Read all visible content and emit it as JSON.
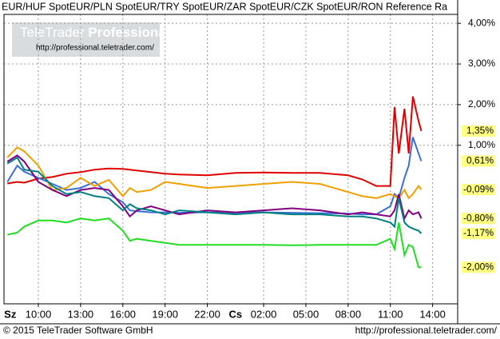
{
  "chart_data": {
    "type": "line",
    "watermark": {
      "brand": "TeleTrader",
      "product": "Professional",
      "url": "http://professional.teletrader.com/"
    },
    "footer_left": "© 2015 TeleTrader Software GmbH",
    "footer_right": "http://professional.teletrader.com/",
    "x": [
      7.8,
      8.5,
      9,
      10,
      11,
      12,
      13,
      14,
      15,
      16,
      16.5,
      17,
      18,
      19,
      20,
      22,
      24,
      26,
      28,
      30,
      32,
      33,
      34,
      35,
      35.3,
      35.6,
      36,
      36.3,
      36.6,
      37,
      37.2
    ],
    "xlim": [
      7.56,
      39.78
    ],
    "xticks": [
      {
        "value": 10,
        "label": "10:00"
      },
      {
        "value": 13,
        "label": "13:00"
      },
      {
        "value": 16,
        "label": "16:00"
      },
      {
        "value": 19,
        "label": "19:00"
      },
      {
        "value": 22,
        "label": "22:00"
      },
      {
        "value": 26,
        "label": "02:00"
      },
      {
        "value": 29,
        "label": "05:00"
      },
      {
        "value": 32,
        "label": "08:00"
      },
      {
        "value": 35,
        "label": "11:00"
      },
      {
        "value": 38,
        "label": "14:00"
      }
    ],
    "day_labels": [
      {
        "value": 8,
        "label": "Sz"
      },
      {
        "value": 24,
        "label": "Cs"
      }
    ],
    "ylim": [
      -2.9,
      4.22
    ],
    "yticks": [
      {
        "value": 4,
        "label": "4,00%"
      },
      {
        "value": 3,
        "label": "3,00%"
      },
      {
        "value": 2,
        "label": "2,00%"
      },
      {
        "value": 1,
        "label": "1,00%"
      }
    ],
    "grid": true,
    "series": [
      {
        "name": "EUR/HUF Spot",
        "color": "#e00000",
        "last_label": "1,35%",
        "values": [
          0.06,
          0.1,
          0.08,
          0.18,
          0.22,
          0.3,
          0.34,
          0.4,
          0.43,
          0.42,
          0.4,
          0.38,
          0.34,
          0.3,
          0.28,
          0.26,
          0.32,
          0.33,
          0.32,
          0.32,
          0.26,
          0.16,
          0.0,
          0.0,
          1.94,
          0.8,
          1.9,
          0.8,
          2.2,
          1.6,
          1.35
        ]
      },
      {
        "name": "EUR/PLN Spot",
        "color": "#3a6fd8",
        "last_label": "0,61%",
        "values": [
          0.1,
          0.5,
          0.35,
          0.2,
          0.05,
          -0.1,
          -0.05,
          0.1,
          -0.2,
          -0.4,
          -0.6,
          -0.62,
          -0.65,
          -0.65,
          -0.66,
          -0.65,
          -0.66,
          -0.65,
          -0.66,
          -0.67,
          -0.68,
          -0.7,
          -0.7,
          -0.5,
          -0.2,
          -0.3,
          0.2,
          0.5,
          1.2,
          0.8,
          0.61
        ]
      },
      {
        "name": "EUR/TRY Spot",
        "color": "#f0a000",
        "last_label": "-0,09%",
        "values": [
          0.7,
          0.95,
          0.85,
          0.5,
          -0.1,
          -0.05,
          0.2,
          0.0,
          0.15,
          -0.25,
          -0.05,
          -0.15,
          -0.1,
          0.1,
          0.05,
          -0.05,
          0.0,
          0.05,
          0.1,
          0.05,
          -0.15,
          -0.25,
          -0.3,
          -0.2,
          -0.25,
          -0.3,
          -0.1,
          -0.3,
          -0.2,
          0.0,
          -0.09
        ]
      },
      {
        "name": "EUR/ZAR Spot",
        "color": "#800080",
        "last_label": "-0,80%",
        "values": [
          0.6,
          0.75,
          0.6,
          0.1,
          -0.1,
          -0.25,
          -0.1,
          -0.05,
          -0.1,
          -0.5,
          -0.75,
          -0.6,
          -0.5,
          -0.6,
          -0.7,
          -0.6,
          -0.65,
          -0.6,
          -0.55,
          -0.6,
          -0.7,
          -0.65,
          -0.7,
          -0.75,
          -0.6,
          -0.2,
          -0.8,
          -0.6,
          -0.7,
          -0.65,
          -0.8
        ]
      },
      {
        "name": "EUR/CZK Spot",
        "color": "#22dd22",
        "last_label": "-2,00%",
        "values": [
          -1.2,
          -1.15,
          -1.0,
          -0.85,
          -0.85,
          -0.9,
          -0.8,
          -0.85,
          -0.8,
          -1.1,
          -1.35,
          -1.3,
          -1.35,
          -1.4,
          -1.45,
          -1.45,
          -1.45,
          -1.45,
          -1.46,
          -1.45,
          -1.45,
          -1.45,
          -1.45,
          -1.3,
          -1.55,
          -0.9,
          -1.7,
          -1.45,
          -1.5,
          -2.0,
          -2.0
        ]
      },
      {
        "name": "EUR/RON Reference Ra",
        "color": "#008080",
        "last_label": "-1,17%",
        "values": [
          0.55,
          0.7,
          0.4,
          0.35,
          0.0,
          -0.2,
          -0.15,
          -0.25,
          -0.3,
          -0.6,
          -0.45,
          -0.55,
          -0.6,
          -0.7,
          -0.6,
          -0.65,
          -0.7,
          -0.65,
          -0.7,
          -0.7,
          -0.75,
          -0.75,
          -0.8,
          -0.9,
          -1.0,
          -0.3,
          -0.9,
          -1.0,
          -1.05,
          -1.1,
          -1.17
        ]
      }
    ]
  }
}
